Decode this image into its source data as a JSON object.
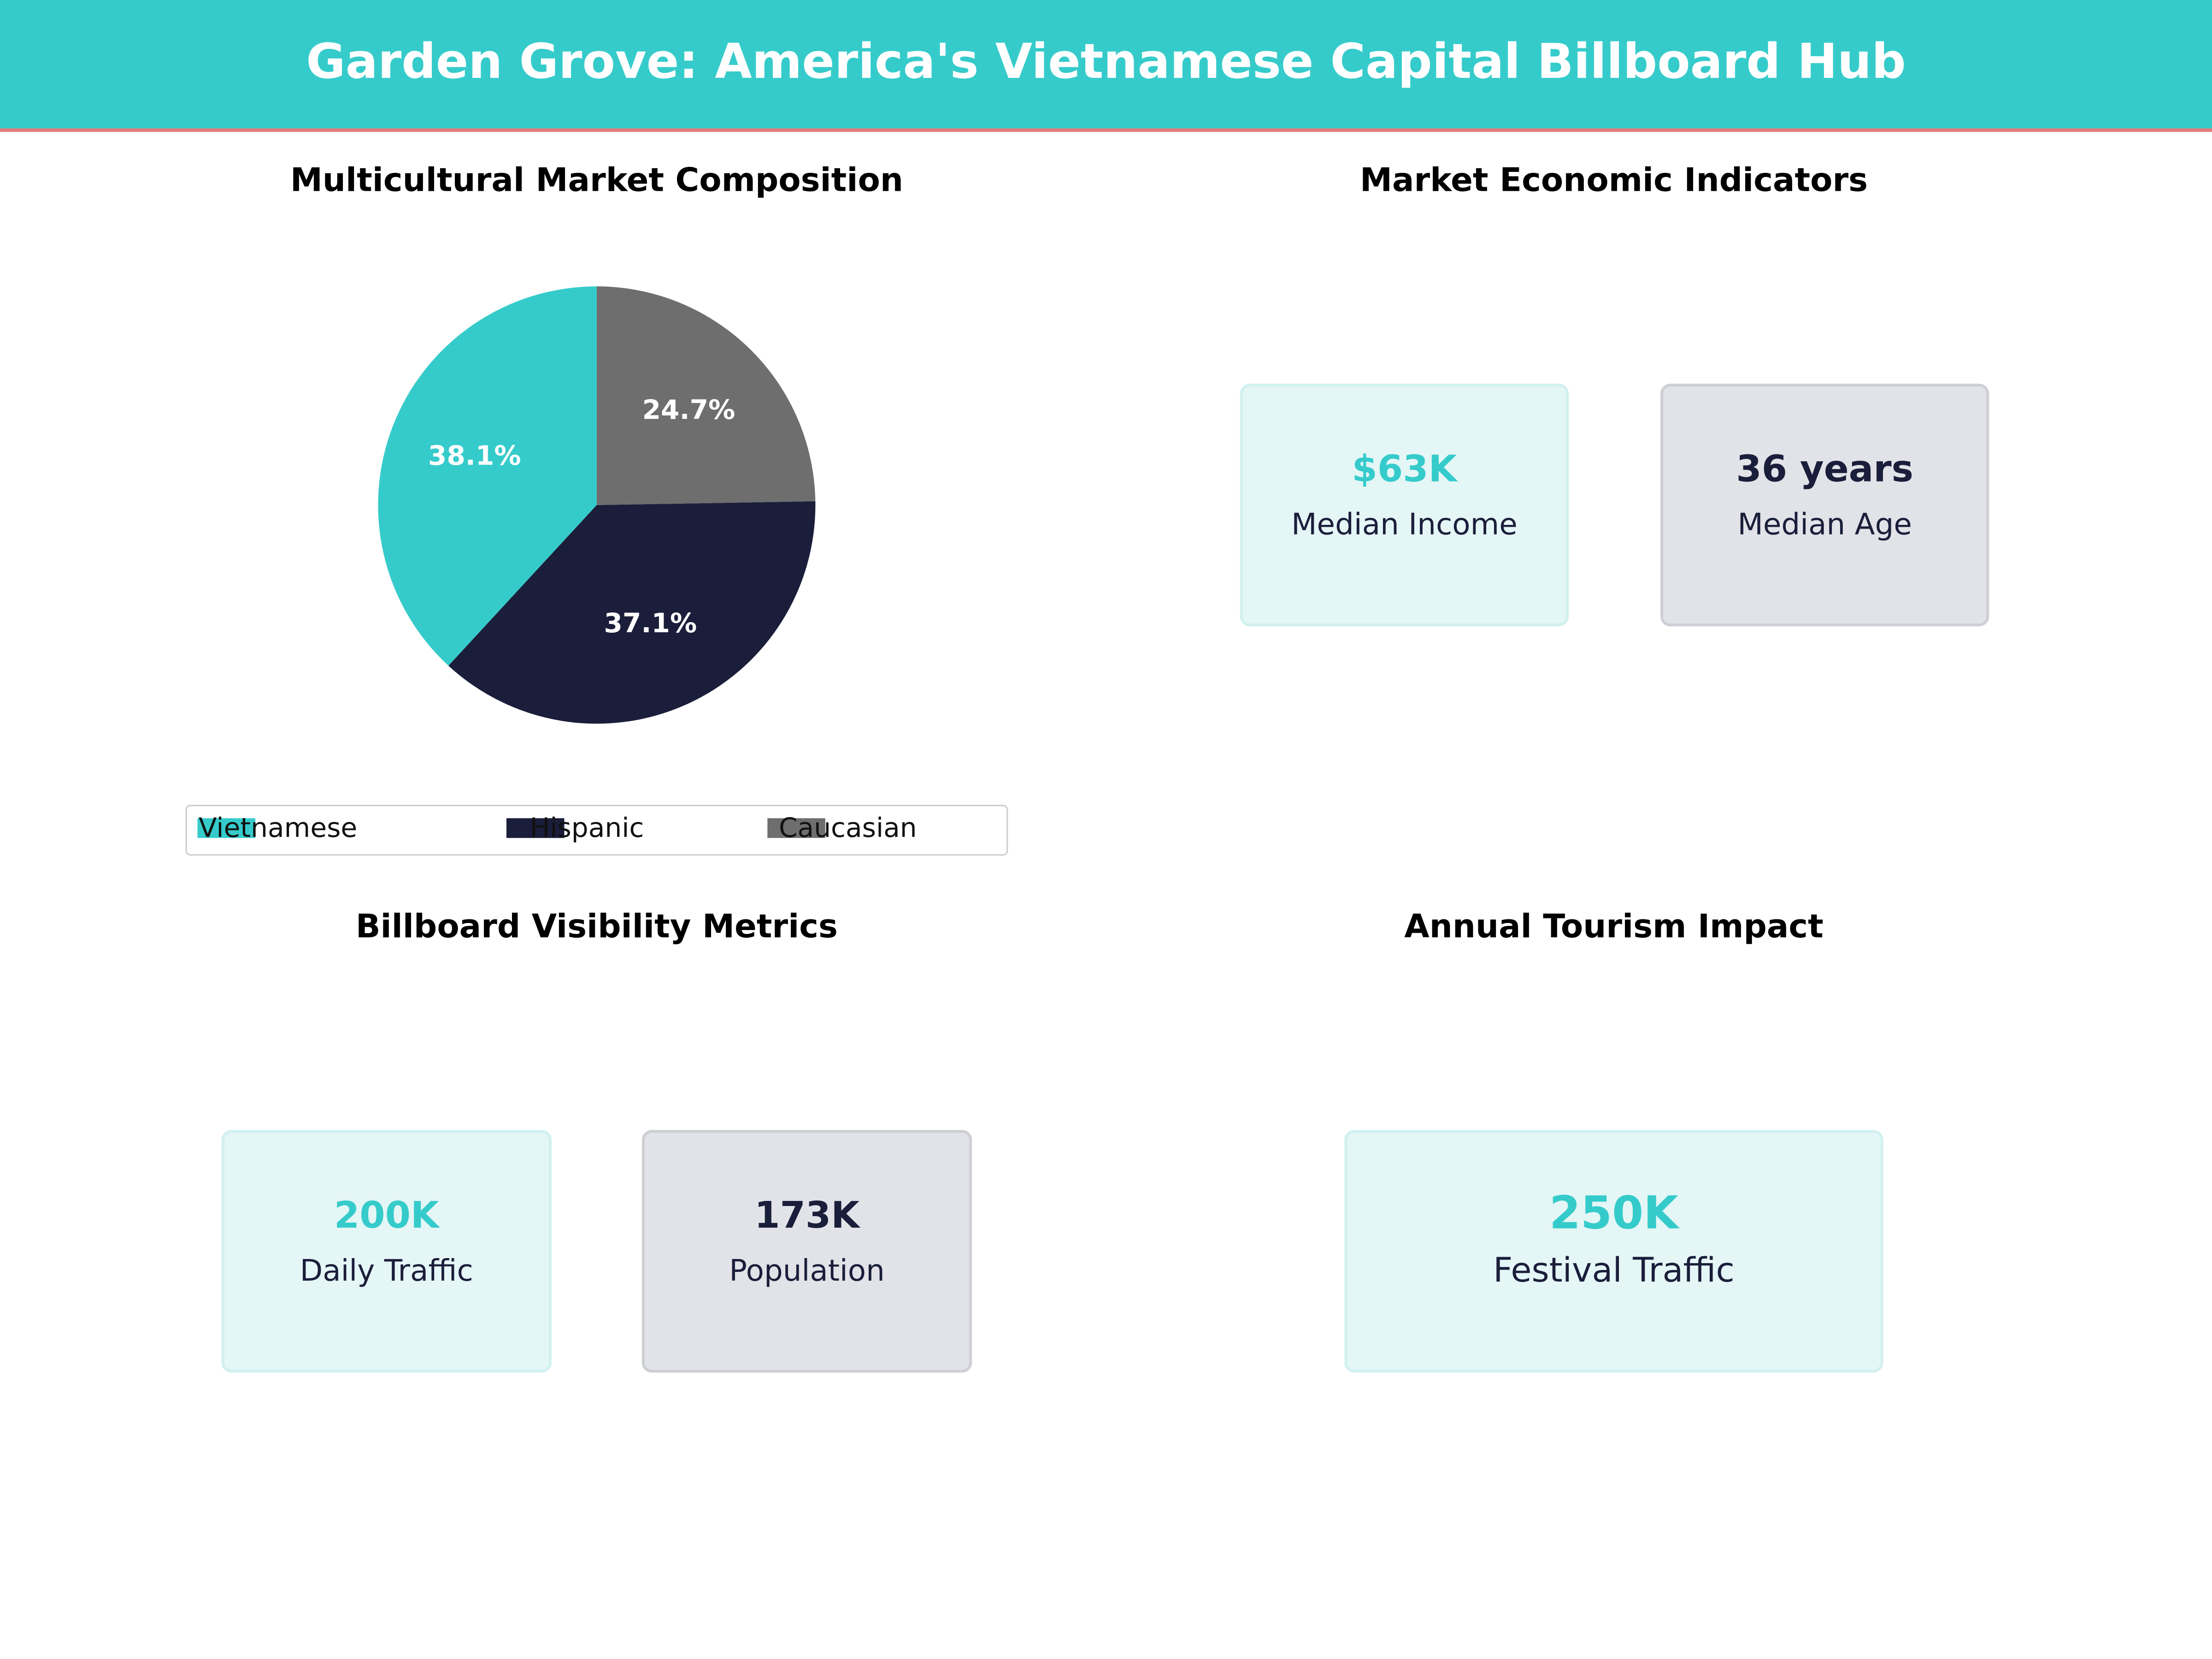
{
  "header": {
    "title": "Garden Grove: America's Vietnamese Capital Billboard Hub"
  },
  "chart_data": {
    "type": "pie",
    "title": "Multicultural Market Composition",
    "categories": [
      "Vietnamese",
      "Hispanic",
      "Caucasian"
    ],
    "values": [
      38.1,
      37.1,
      24.7
    ],
    "value_labels": [
      "38.1%",
      "37.1%",
      "24.7%"
    ],
    "colors": [
      "#36cbcb",
      "#1b1e3a",
      "#6e6e6e"
    ],
    "legend": "bottom"
  },
  "panels": [
    {
      "title": "Market Economic Indicators",
      "cards": [
        {
          "value": "$63K",
          "label": "Median Income",
          "color": "#36cbcb"
        },
        {
          "value": "36 years",
          "label": "Median Age",
          "color": "#1b1e3a"
        }
      ]
    },
    {
      "title": "Billboard Visibility Metrics",
      "cards": [
        {
          "value": "200K",
          "label": "Daily Traffic",
          "color": "#36cbcb"
        },
        {
          "value": "173K",
          "label": "Population",
          "color": "#1b1e3a"
        }
      ]
    },
    {
      "title": "Annual Tourism Impact",
      "cards": [
        {
          "value": "250K",
          "label": "Festival Traffic",
          "color": "#36cbcb"
        }
      ]
    }
  ]
}
